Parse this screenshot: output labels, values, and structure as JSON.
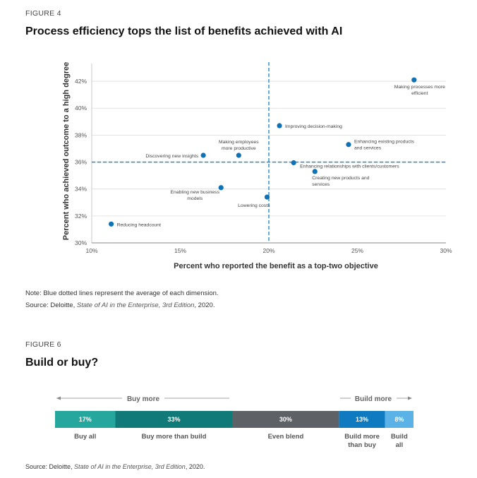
{
  "figure4": {
    "label": "FIGURE 4",
    "title": "Process efficiency tops the list of benefits achieved with AI",
    "note": "Note: Blue dotted lines represent the average of each dimension.",
    "source_prefix": "Source: Deloitte, ",
    "source_title": "State of AI in the Enterprise, 3rd Edition",
    "source_suffix": ", 2020."
  },
  "figure6": {
    "label": "FIGURE 6",
    "title": "Build or buy?",
    "buy_more": "Buy more",
    "build_more": "Build more",
    "source_prefix": "Source: Deloitte, ",
    "source_title": "State of AI in the Enterprise, 3rd Edition",
    "source_suffix": ", 2020."
  },
  "chart_data": [
    {
      "type": "scatter",
      "title": "Process efficiency tops the list of benefits achieved with AI",
      "xlabel": "Percent who reported the benefit as a top-two objective",
      "ylabel": "Percent who achieved outcome to a high degree",
      "xlim": [
        10,
        30
      ],
      "ylim": [
        30,
        43
      ],
      "xticks": [
        10,
        15,
        20,
        25,
        30
      ],
      "xtick_labels": [
        "10%",
        "15%",
        "20%",
        "25%",
        "30%"
      ],
      "yticks": [
        30,
        32,
        34,
        36,
        38,
        40,
        42
      ],
      "ytick_labels": [
        "30%",
        "32%",
        "34%",
        "36%",
        "38%",
        "40%",
        "42%"
      ],
      "average_lines": {
        "x": 20,
        "y": 36
      },
      "points": [
        {
          "label": "Making processes more efficient",
          "x": 28.2,
          "y": 42.1
        },
        {
          "label": "Improving decision-making",
          "x": 20.6,
          "y": 38.7
        },
        {
          "label": "Enhancing existing products and services",
          "x": 24.5,
          "y": 37.3
        },
        {
          "label": "Making employees more productive",
          "x": 18.3,
          "y": 36.5
        },
        {
          "label": "Discovering new insights",
          "x": 16.3,
          "y": 36.5
        },
        {
          "label": "Enhancing relationships with clients/customers",
          "x": 21.4,
          "y": 35.95
        },
        {
          "label": "Creating new products and services",
          "x": 22.6,
          "y": 35.3
        },
        {
          "label": "Enabling new business models",
          "x": 17.3,
          "y": 34.1
        },
        {
          "label": "Lowering costs",
          "x": 19.9,
          "y": 33.4
        },
        {
          "label": "Reducing headcount",
          "x": 11.1,
          "y": 31.4
        }
      ]
    },
    {
      "type": "bar",
      "orientation": "horizontal-stacked",
      "title": "Build or buy?",
      "categories": [
        "Buy all",
        "Buy more than build",
        "Even blend",
        "Build more than buy",
        "Build all"
      ],
      "values": [
        17,
        33,
        30,
        13,
        8
      ],
      "value_labels": [
        "17%",
        "33%",
        "30%",
        "13%",
        "8%"
      ],
      "colors": [
        "#26A79E",
        "#0F7A78",
        "#5E6267",
        "#0F7ABF",
        "#5BB2E6"
      ]
    }
  ]
}
